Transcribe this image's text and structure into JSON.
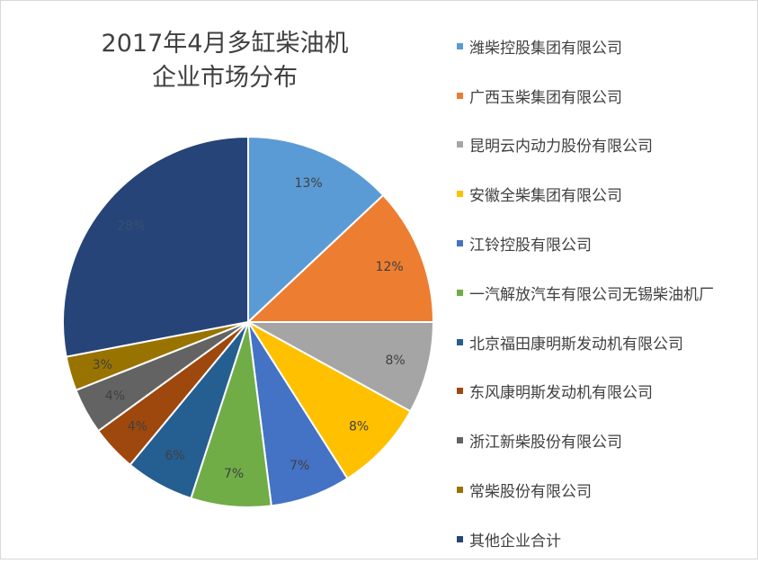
{
  "chart_data": {
    "type": "pie",
    "title_lines": [
      "2017年4月多缸柴油机",
      "企业市场分布"
    ],
    "legend_position": "right",
    "slices": [
      {
        "label": "潍柴控股集团有限公司",
        "value": 13,
        "display": "13%",
        "color": "#5b9bd5",
        "label_color": "#404040"
      },
      {
        "label": "广西玉柴集团有限公司",
        "value": 12,
        "display": "12%",
        "color": "#ed7d31",
        "label_color": "#404040"
      },
      {
        "label": "昆明云内动力股份有限公司",
        "value": 8,
        "display": "8%",
        "color": "#a5a5a5",
        "label_color": "#404040"
      },
      {
        "label": "安徽全柴集团有限公司",
        "value": 8,
        "display": "8%",
        "color": "#ffc000",
        "label_color": "#404040"
      },
      {
        "label": "江铃控股有限公司",
        "value": 7,
        "display": "7%",
        "color": "#4472c4",
        "label_color": "#404040"
      },
      {
        "label": "一汽解放汽车有限公司无锡柴油机厂",
        "value": 7,
        "display": "7%",
        "color": "#70ad47",
        "label_color": "#404040"
      },
      {
        "label": "北京福田康明斯发动机有限公司",
        "value": 6,
        "display": "6%",
        "color": "#255e91",
        "label_color": "#404040"
      },
      {
        "label": "东风康明斯发动机有限公司",
        "value": 4,
        "display": "4%",
        "color": "#9e480e",
        "label_color": "#404040"
      },
      {
        "label": "浙江新柴股份有限公司",
        "value": 4,
        "display": "4%",
        "color": "#636363",
        "label_color": "#404040"
      },
      {
        "label": "常柴股份有限公司",
        "value": 3,
        "display": "3%",
        "color": "#997300",
        "label_color": "#404040"
      },
      {
        "label": "其他企业合计",
        "value": 28,
        "display": "28%",
        "color": "#264478",
        "label_color": "#3a4f70"
      }
    ]
  }
}
